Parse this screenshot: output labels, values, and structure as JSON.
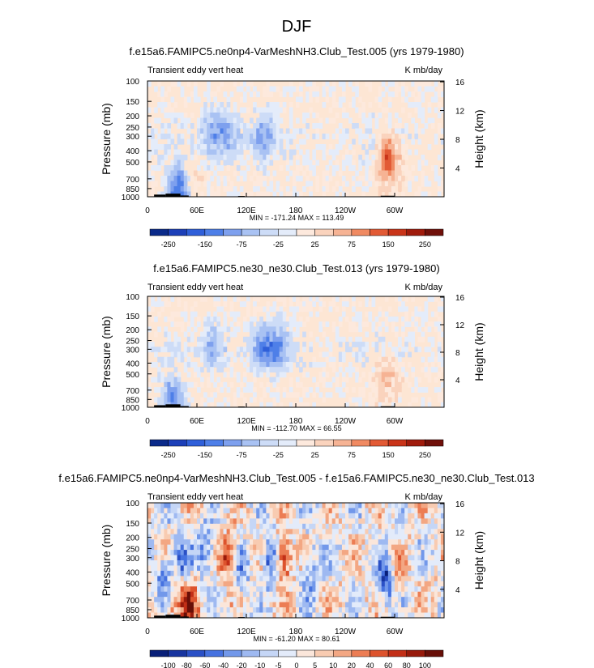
{
  "page_title": "DJF",
  "palette_abs": [
    "#0a2a8a",
    "#1c3fb8",
    "#2f5fd9",
    "#4e7fe8",
    "#7ea0ee",
    "#a9c2f3",
    "#cddcf7",
    "#e4ecfa",
    "#fde9dd",
    "#fad3bd",
    "#f6b394",
    "#f08a62",
    "#e25a35",
    "#c93419",
    "#a01b0c",
    "#70100a"
  ],
  "palette_diff": [
    "#081f78",
    "#17349f",
    "#2a50c6",
    "#4672e0",
    "#7298ea",
    "#9eb9f1",
    "#c5d6f6",
    "#e3ebfa",
    "#fbe6da",
    "#f8cbb1",
    "#f3a783",
    "#ec7d54",
    "#dd532d",
    "#c22f17",
    "#971a0b",
    "#680f08"
  ],
  "map_bg": "#fde6d4",
  "chart_data": [
    {
      "type": "heatmap",
      "name": "panel-1",
      "title": "f.e15a6.FAMIPC5.ne0np4-VarMeshNH3.Club_Test.005 (yrs 1979-1980)",
      "left_label": "Transient eddy vert heat",
      "right_label": "K mb/day",
      "ylabel": "Pressure (mb)",
      "y2label": "Height (km)",
      "pressure_ticks": [
        "100",
        "150",
        "200",
        "250",
        "300",
        "400",
        "500",
        "700",
        "850",
        "1000"
      ],
      "height_ticks": [
        "16",
        "12",
        "8",
        "4"
      ],
      "x_ticks": [
        "0",
        "60E",
        "120E",
        "180",
        "120W",
        "60W"
      ],
      "minmax": "MIN = -171.24  MAX = 113.49",
      "colorbar_labels": [
        "-250",
        "-150",
        "-75",
        "-25",
        "25",
        "75",
        "150",
        "250"
      ],
      "palette": "abs",
      "features": [
        {
          "lon": 40,
          "p": 830,
          "kind": "neg",
          "amp": 0.9
        },
        {
          "lon": 48,
          "p": 780,
          "kind": "pos",
          "amp": 0.4
        },
        {
          "lon": 290,
          "p": 450,
          "kind": "pos",
          "amp": 0.9
        },
        {
          "lon": 284,
          "p": 420,
          "kind": "neg",
          "amp": 0.3
        },
        {
          "lon": 80,
          "p": 280,
          "kind": "neg",
          "amp": 0.35
        },
        {
          "lon": 140,
          "p": 300,
          "kind": "neg",
          "amp": 0.35
        },
        {
          "lon": 100,
          "p": 290,
          "kind": "neg",
          "amp": 0.3
        }
      ]
    },
    {
      "type": "heatmap",
      "name": "panel-2",
      "title": "f.e15a6.FAMIPC5.ne30_ne30.Club_Test.013 (yrs 1979-1980)",
      "left_label": "Transient eddy vert heat",
      "right_label": "K mb/day",
      "ylabel": "Pressure (mb)",
      "y2label": "Height (km)",
      "pressure_ticks": [
        "100",
        "150",
        "200",
        "250",
        "300",
        "400",
        "500",
        "700",
        "850",
        "1000"
      ],
      "height_ticks": [
        "16",
        "12",
        "8",
        "4"
      ],
      "x_ticks": [
        "0",
        "60E",
        "120E",
        "180",
        "120W",
        "60W"
      ],
      "minmax": "MIN = -112.70  MAX =  66.55",
      "colorbar_labels": [
        "-250",
        "-150",
        "-75",
        "-25",
        "25",
        "75",
        "150",
        "250"
      ],
      "palette": "abs",
      "features": [
        {
          "lon": 30,
          "p": 850,
          "kind": "neg",
          "amp": 0.5
        },
        {
          "lon": 80,
          "p": 280,
          "kind": "neg",
          "amp": 0.35
        },
        {
          "lon": 140,
          "p": 290,
          "kind": "neg",
          "amp": 0.4
        },
        {
          "lon": 160,
          "p": 280,
          "kind": "neg",
          "amp": 0.35
        },
        {
          "lon": 290,
          "p": 500,
          "kind": "pos",
          "amp": 0.3
        }
      ]
    },
    {
      "type": "heatmap",
      "name": "panel-3",
      "title": "f.e15a6.FAMIPC5.ne0np4-VarMeshNH3.Club_Test.005 - f.e15a6.FAMIPC5.ne30_ne30.Club_Test.013",
      "left_label": "Transient eddy vert heat",
      "right_label": "K mb/day",
      "ylabel": "Pressure (mb)",
      "y2label": "Height (km)",
      "pressure_ticks": [
        "100",
        "150",
        "200",
        "250",
        "300",
        "400",
        "500",
        "700",
        "850",
        "1000"
      ],
      "height_ticks": [
        "16",
        "12",
        "8",
        "4"
      ],
      "x_ticks": [
        "0",
        "60E",
        "120E",
        "180",
        "120W",
        "60W"
      ],
      "minmax": "MIN = -61.20  MAX =  80.61",
      "colorbar_labels": [
        "-100",
        "-80",
        "-60",
        "-40",
        "-20",
        "-10",
        "-5",
        "0",
        "5",
        "10",
        "20",
        "40",
        "60",
        "80",
        "100"
      ],
      "palette": "diff",
      "features": [
        {
          "lon": 20,
          "p": 500,
          "kind": "neg",
          "amp": 0.6
        },
        {
          "lon": 40,
          "p": 300,
          "kind": "neg",
          "amp": 0.5
        },
        {
          "lon": 50,
          "p": 800,
          "kind": "pos",
          "amp": 0.7
        },
        {
          "lon": 70,
          "p": 250,
          "kind": "neg",
          "amp": 0.5
        },
        {
          "lon": 100,
          "p": 300,
          "kind": "pos",
          "amp": 0.8
        },
        {
          "lon": 112,
          "p": 400,
          "kind": "neg",
          "amp": 0.5
        },
        {
          "lon": 150,
          "p": 300,
          "kind": "neg",
          "amp": 0.7
        },
        {
          "lon": 165,
          "p": 300,
          "kind": "pos",
          "amp": 0.8
        },
        {
          "lon": 200,
          "p": 350,
          "kind": "neg",
          "amp": 0.4
        },
        {
          "lon": 290,
          "p": 450,
          "kind": "neg",
          "amp": 0.9
        },
        {
          "lon": 300,
          "p": 450,
          "kind": "pos",
          "amp": 0.4
        },
        {
          "lon": 30,
          "p": 700,
          "kind": "pos",
          "amp": 0.5
        }
      ]
    }
  ]
}
